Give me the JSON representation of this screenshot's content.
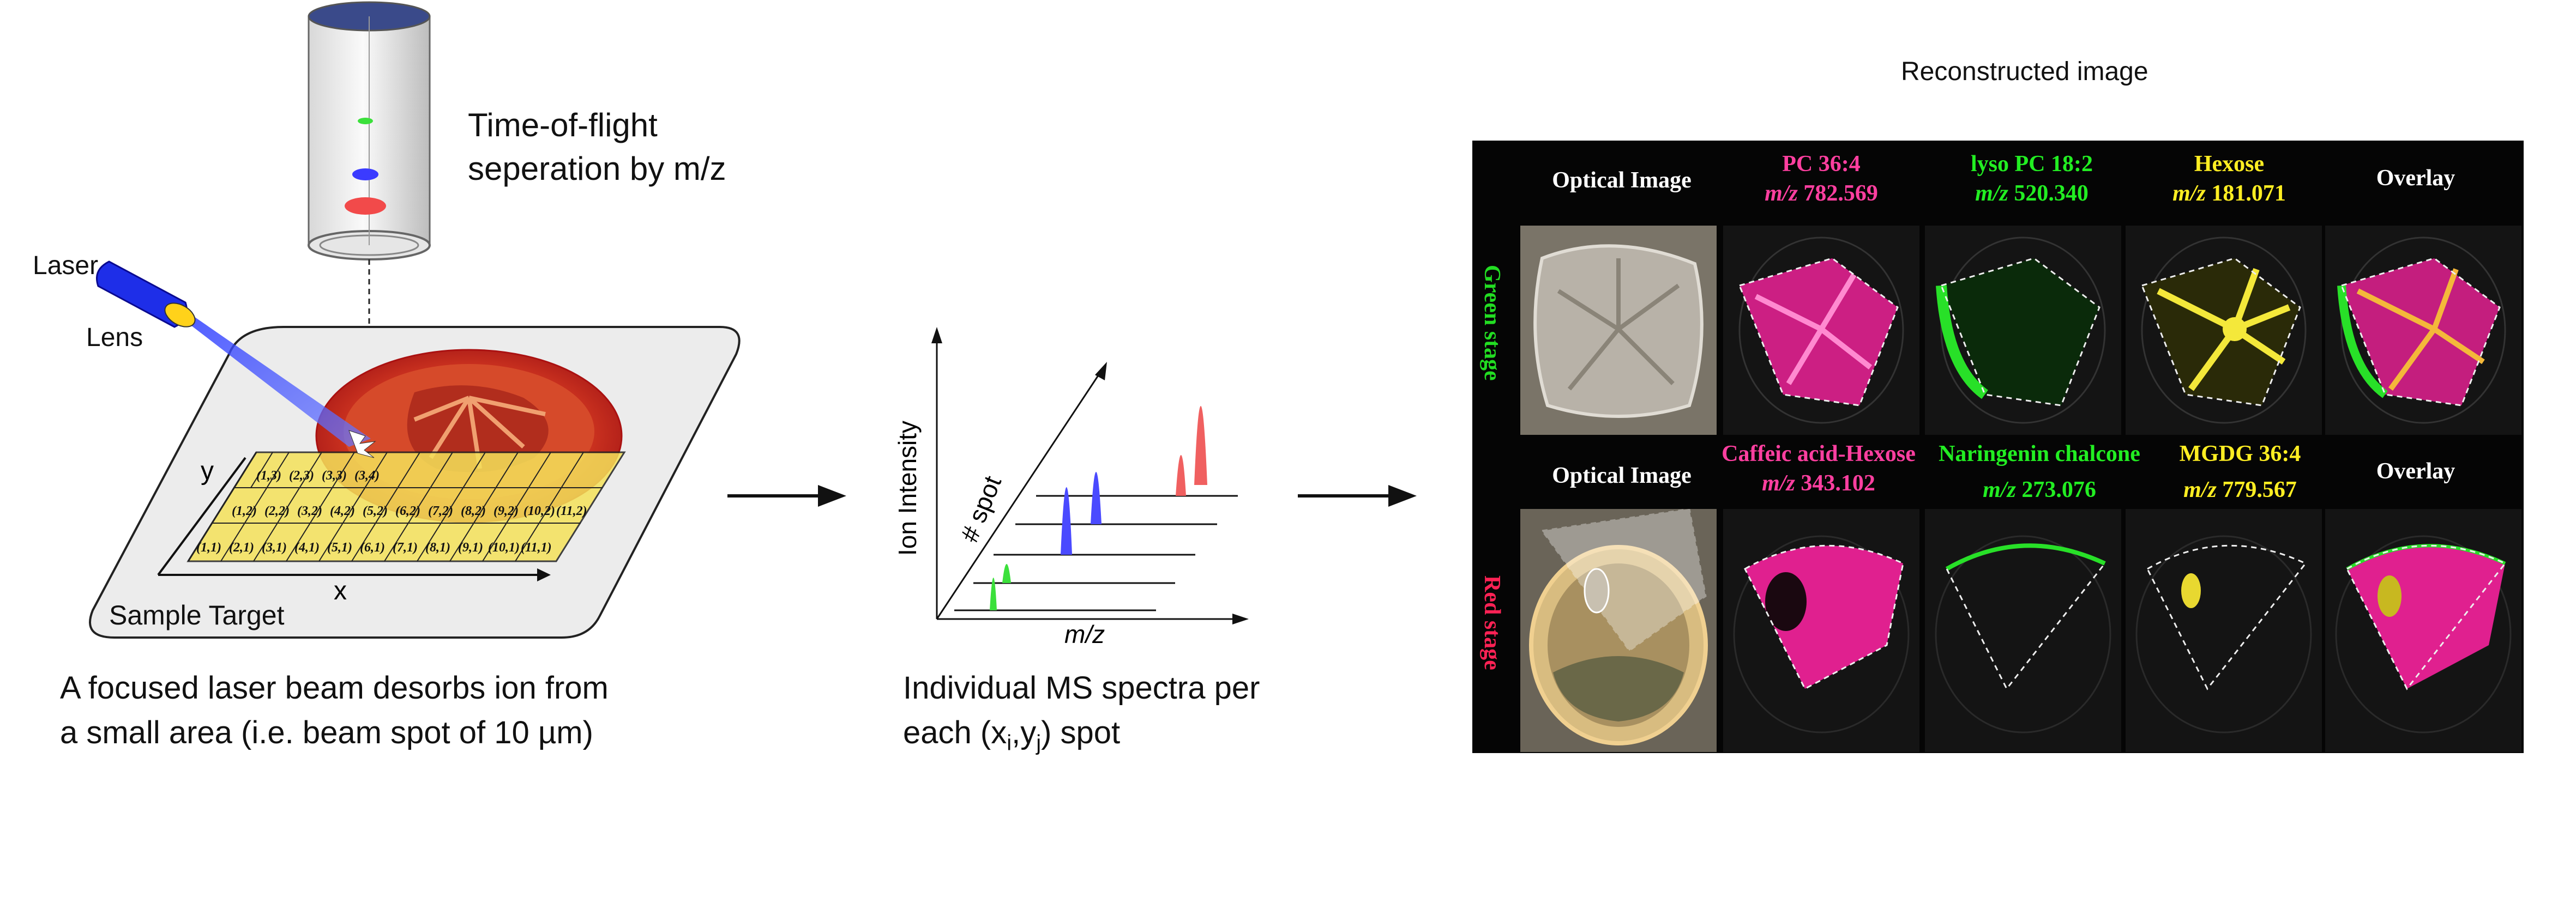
{
  "left_panel": {
    "tof_label_line1": "Time-of-flight",
    "tof_label_line2": "seperation by m/z",
    "laser_label": "Laser",
    "lens_label": "Lens",
    "axis_x": "x",
    "axis_y": "y",
    "target_label": "Sample Target",
    "grid_cells": [
      "(1,1)",
      "(1,2)",
      "(1,3)",
      "(2,1)",
      "(2,2)",
      "(2,3)",
      "(3,1)",
      "(3,2)",
      "(3,3)",
      "(4,1)",
      "(4,2)",
      "(3,4)",
      "(5,1)",
      "(5,2)",
      "(6,1)",
      "(6,2)",
      "(7,1)",
      "(7,2)",
      "(8,1)",
      "(8,2)",
      "(9,1)",
      "(9,2)",
      "(10,1)",
      "(10,2)",
      "(11,1)",
      "(11,2)"
    ],
    "caption_line1": "A focused laser beam desorbs ion from",
    "caption_line2": "a small area (i.e. beam spot of 10 µm)"
  },
  "middle_panel": {
    "y_axis_label": "Ion Intensity",
    "z_axis_label": "# spot",
    "x_axis_label": "m/z",
    "caption_line1": "Individual MS spectra per",
    "caption_line2_prefix": "each (x",
    "caption_sub_i": "i",
    "caption_comma": ",y",
    "caption_sub_j": "j",
    "caption_line2_suffix": ") spot"
  },
  "right_panel": {
    "title": "Reconstructed image",
    "rows": [
      {
        "label": "Green stage",
        "label_color": "#22dd22",
        "columns": [
          {
            "name": "Optical Image",
            "mz_prefix": "",
            "mz": "",
            "color": "#ffffff"
          },
          {
            "name": "PC 36:4",
            "mz_prefix": "m/z",
            "mz": "782.569",
            "color": "#ff3fa0"
          },
          {
            "name": "lyso PC 18:2",
            "mz_prefix": "m/z",
            "mz": "520.340",
            "color": "#22ee22"
          },
          {
            "name": "Hexose",
            "mz_prefix": "m/z",
            "mz": "181.071",
            "color": "#ffee22"
          },
          {
            "name": "Overlay",
            "mz_prefix": "",
            "mz": "",
            "color": "#ffffff"
          }
        ]
      },
      {
        "label": "Red stage",
        "label_color": "#ff2255",
        "columns": [
          {
            "name": "Optical Image",
            "mz_prefix": "",
            "mz": "",
            "color": "#ffffff"
          },
          {
            "name": "Caffeic acid-Hexose",
            "mz_prefix": "m/z",
            "mz": "343.102",
            "color": "#ff3fa0"
          },
          {
            "name": "Naringenin chalcone",
            "mz_prefix": "m/z",
            "mz": "273.076",
            "color": "#22ee22"
          },
          {
            "name": "MGDG 36:4",
            "mz_prefix": "m/z",
            "mz": "779.567",
            "color": "#ffee22"
          },
          {
            "name": "Overlay",
            "mz_prefix": "",
            "mz": "",
            "color": "#ffffff"
          }
        ]
      }
    ]
  }
}
